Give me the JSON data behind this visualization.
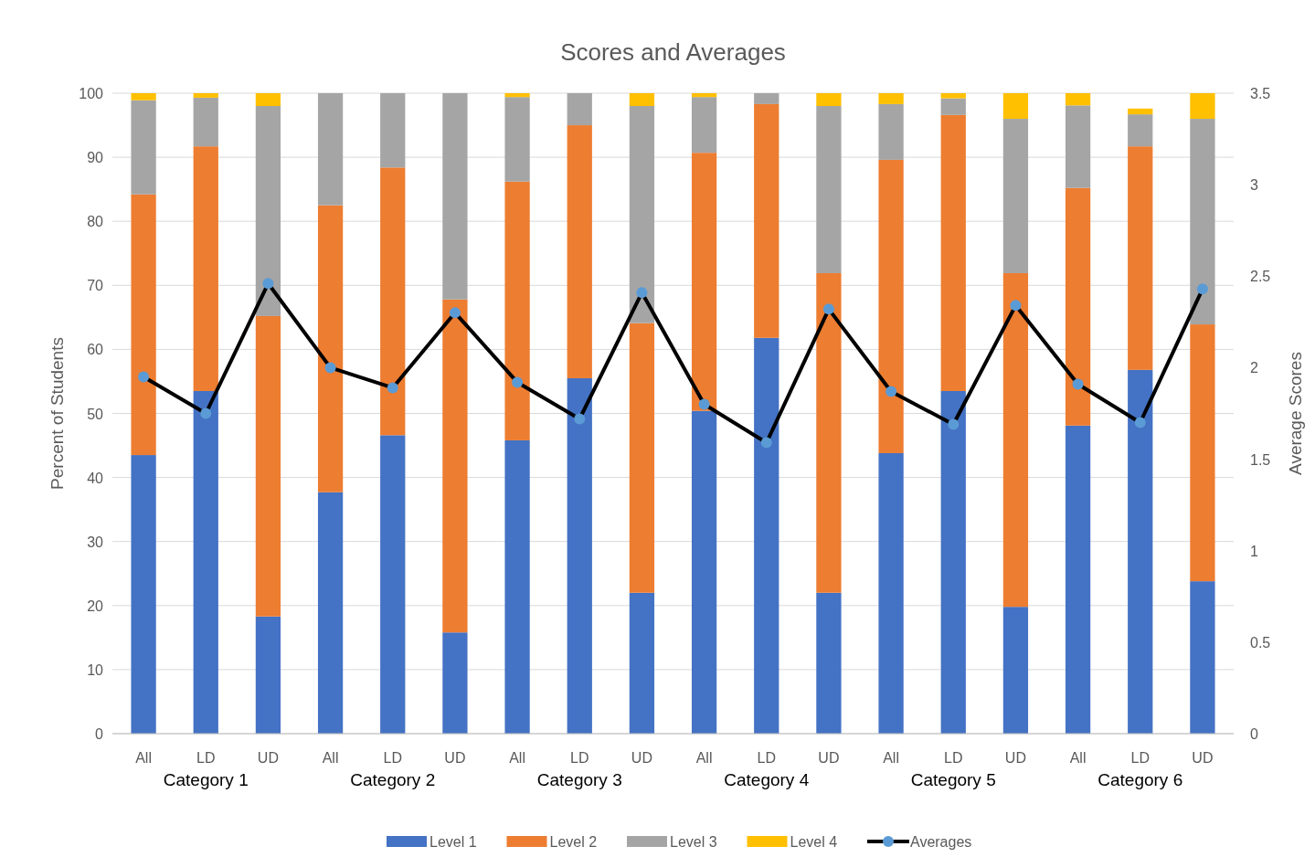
{
  "chart_data": {
    "type": "bar",
    "stacked": true,
    "title": "Scores and Averages",
    "ylabel": "Percent of Students",
    "y2label": "Average Scores",
    "categories": [
      "All",
      "LD",
      "UD",
      "All",
      "LD",
      "UD",
      "All",
      "LD",
      "UD",
      "All",
      "LD",
      "UD",
      "All",
      "LD",
      "UD",
      "All",
      "LD",
      "UD"
    ],
    "annotations": [
      "Category 1",
      "Category 2",
      "Category 3",
      "Category 4",
      "Category 5",
      "Category 6"
    ],
    "series": [
      {
        "name": "Level 1",
        "color": "#4472c4",
        "values": [
          43.5,
          53.5,
          18.3,
          37.7,
          46.6,
          15.8,
          45.8,
          55.5,
          22,
          50.4,
          61.8,
          22,
          43.8,
          53.5,
          19.8,
          48.1,
          56.8,
          23.8
        ]
      },
      {
        "name": "Level 2",
        "color": "#ed7d31",
        "values": [
          40.7,
          38.2,
          46.9,
          44.8,
          41.8,
          52,
          40.4,
          39.5,
          42.1,
          40.3,
          36.5,
          49.9,
          45.8,
          43.1,
          52.1,
          37.1,
          34.9,
          40.1
        ]
      },
      {
        "name": "Level 3",
        "color": "#a5a5a5",
        "values": [
          14.7,
          7.6,
          32.8,
          17.5,
          11.6,
          32.2,
          13.2,
          5,
          33.9,
          8.7,
          1.7,
          26.1,
          8.7,
          2.6,
          24.1,
          12.9,
          5,
          32.1
        ]
      },
      {
        "name": "Level 4",
        "color": "#ffc000",
        "values": [
          1.1,
          0.7,
          2,
          0,
          0,
          0,
          0.6,
          0,
          2,
          0.6,
          0,
          2,
          1.7,
          0.8,
          4,
          1.9,
          0.9,
          4
        ]
      },
      {
        "name": "Averages",
        "type": "line",
        "axis": "y2",
        "color": "#000000",
        "marker": "circle",
        "values": [
          1.95,
          1.75,
          2.46,
          2.0,
          1.89,
          2.3,
          1.92,
          1.72,
          2.41,
          1.8,
          1.59,
          2.32,
          1.87,
          1.69,
          2.34,
          1.91,
          1.7,
          2.43
        ]
      }
    ],
    "ylim": [
      0,
      100
    ],
    "yticks": [
      0,
      10,
      20,
      30,
      40,
      50,
      60,
      70,
      80,
      90,
      100
    ],
    "y2lim": [
      0,
      3.5
    ],
    "y2ticks": [
      0,
      0.5,
      1,
      1.5,
      2,
      2.5,
      3,
      3.5
    ],
    "grid": "y",
    "legend": "bottom"
  }
}
